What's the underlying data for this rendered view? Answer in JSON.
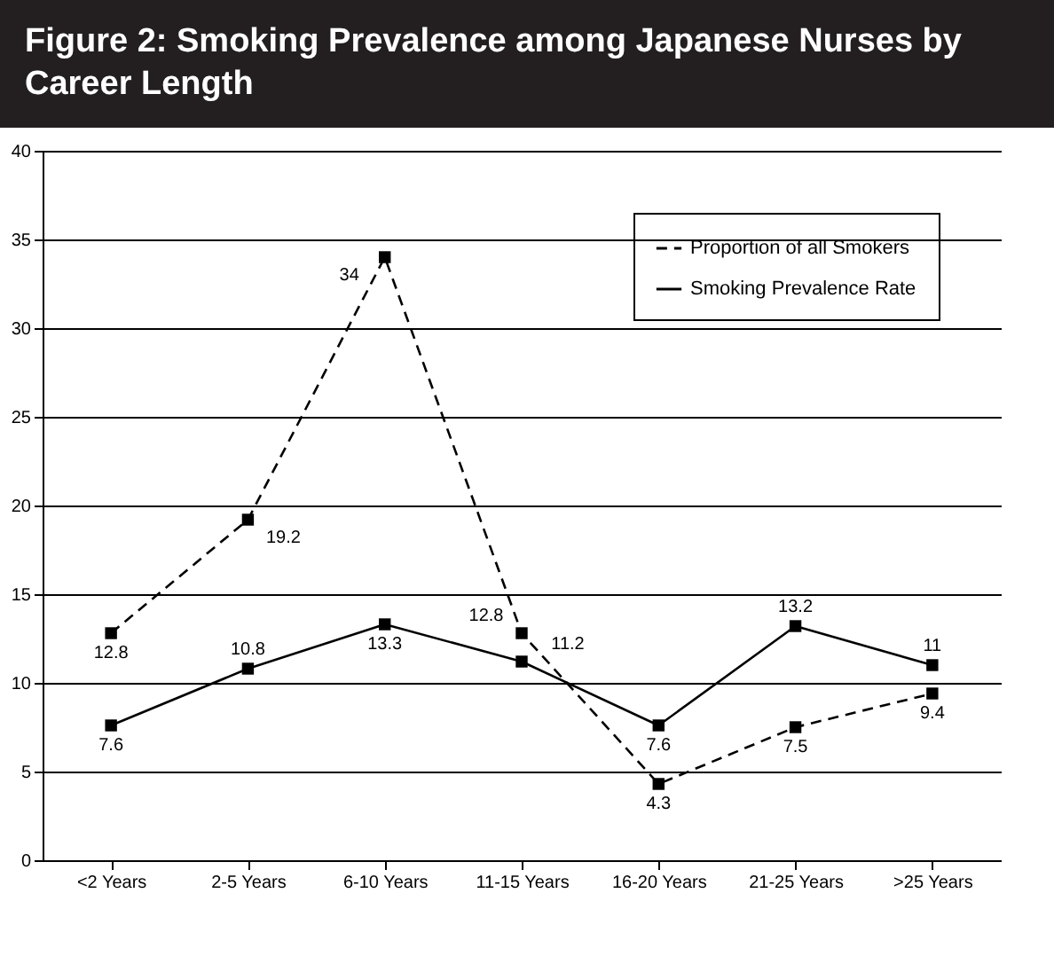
{
  "chart_data": {
    "type": "line",
    "title": "Figure 2: Smoking Prevalence among Japanese Nurses by Career Length",
    "categories": [
      "<2 Years",
      "2-5 Years",
      "6-10 Years",
      "11-15 Years",
      "16-20 Years",
      "21-25 Years",
      ">25 Years"
    ],
    "series": [
      {
        "name": "Proportion of all Smokers",
        "color": "#000000",
        "line_style": "dashed",
        "values": [
          12.8,
          19.2,
          34,
          12.8,
          4.3,
          7.5,
          9.4
        ]
      },
      {
        "name": "Smoking Prevalence Rate",
        "color": "#000000",
        "line_style": "solid",
        "values": [
          7.6,
          10.8,
          13.3,
          11.2,
          7.6,
          13.2,
          11
        ]
      }
    ],
    "ylim": [
      0,
      40
    ],
    "yticks": [
      0,
      5,
      10,
      15,
      20,
      25,
      30,
      35,
      40
    ],
    "grid": "y",
    "legend": "top right",
    "marker": "square",
    "data_labels": true
  }
}
